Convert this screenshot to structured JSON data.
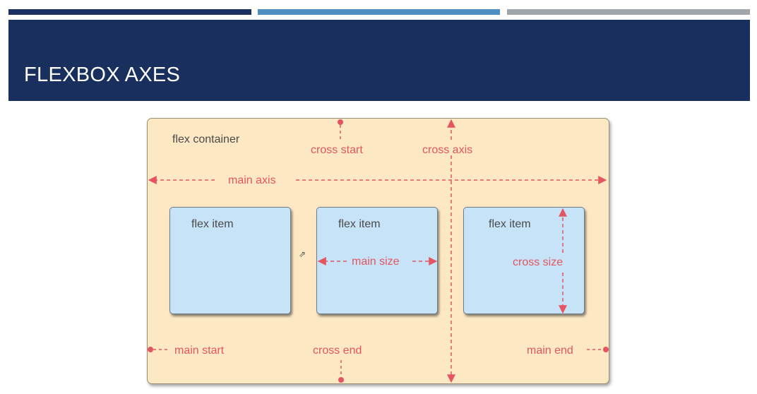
{
  "slide": {
    "title": "FLEXBOX AXES"
  },
  "diagram": {
    "container_label": "flex container",
    "items": [
      {
        "label": "flex item"
      },
      {
        "label": "flex item"
      },
      {
        "label": "flex item"
      }
    ],
    "annotations": {
      "cross_start": "cross start",
      "cross_axis": "cross axis",
      "main_axis": "main axis",
      "main_size": "main size",
      "cross_size": "cross size",
      "main_start": "main start",
      "cross_end": "cross end",
      "main_end": "main end"
    }
  },
  "colors": {
    "header": "#19305f",
    "container_fill": "#fce8c3",
    "item_fill": "#c7e3f8",
    "annotation": "#e45561"
  }
}
